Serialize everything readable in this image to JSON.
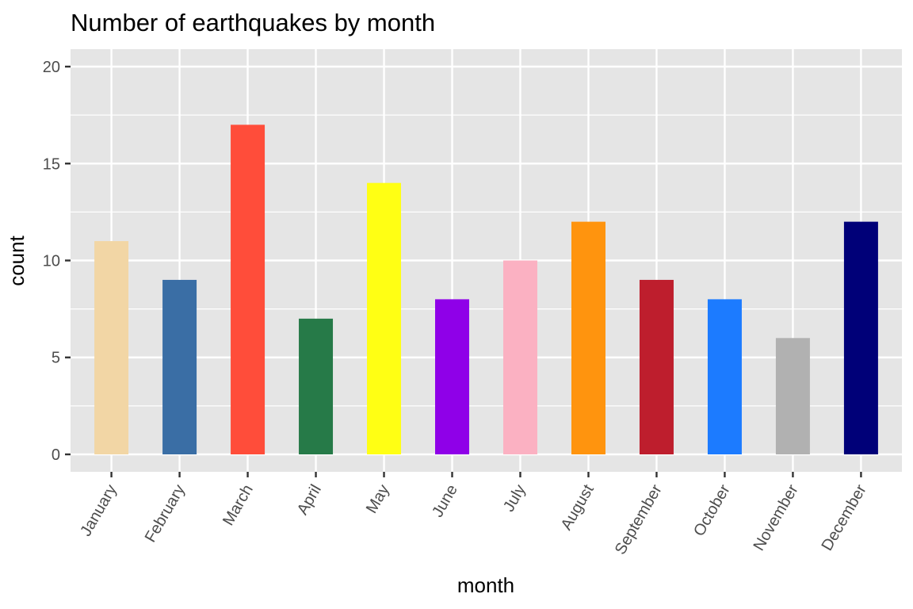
{
  "chart_data": {
    "type": "bar",
    "title": "Number of earthquakes by month",
    "xlabel": "month",
    "ylabel": "count",
    "categories": [
      "January",
      "February",
      "March",
      "April",
      "May",
      "June",
      "July",
      "August",
      "September",
      "October",
      "November",
      "December"
    ],
    "values": [
      11,
      9,
      17,
      7,
      14,
      8,
      10,
      12,
      9,
      8,
      6,
      12
    ],
    "colors": [
      "#F2D6A5",
      "#3A6EA5",
      "#FF4D3A",
      "#267A48",
      "#FFFF14",
      "#8F00E8",
      "#FBB1C2",
      "#FF940E",
      "#BE1E2D",
      "#1C7BFF",
      "#B1B1B1",
      "#000078"
    ],
    "ylim": [
      -0.9,
      20.9
    ],
    "yticks": [
      0,
      5,
      10,
      15,
      20
    ],
    "grid": true,
    "legend": "none",
    "panel_background": "#E5E5E5",
    "grid_color": "#FFFFFF"
  }
}
